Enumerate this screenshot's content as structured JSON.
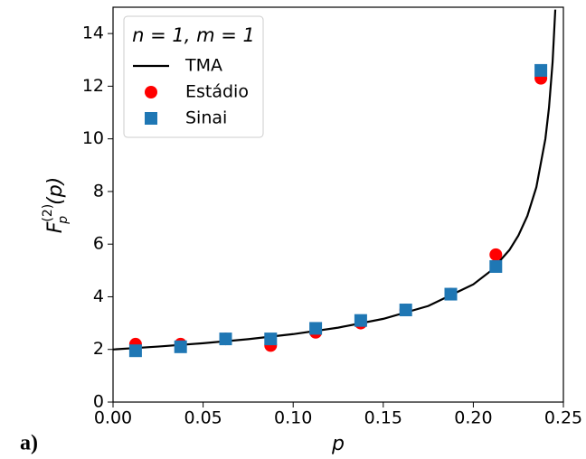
{
  "chart_data": {
    "type": "scatter",
    "ylabel": {
      "base": "F",
      "sup": "(2)",
      "sub": "p",
      "arg": "(p)"
    },
    "xlabel": "p",
    "annotation": "a)",
    "legend_title": "n = 1, m = 1",
    "legend": "upper left",
    "xlim": [
      0,
      0.25
    ],
    "ylim": [
      0,
      15
    ],
    "xticks": [
      {
        "value": 0,
        "label": "0.00"
      },
      {
        "value": 0.05,
        "label": "0.05"
      },
      {
        "value": 0.1,
        "label": "0.10"
      },
      {
        "value": 0.15,
        "label": "0.15"
      },
      {
        "value": 0.2,
        "label": "0.20"
      },
      {
        "value": 0.25,
        "label": "0.25"
      }
    ],
    "yticks": [
      0,
      2,
      4,
      6,
      8,
      10,
      12,
      14
    ],
    "series": [
      {
        "name": "TMA",
        "type": "line",
        "color": "#000000",
        "x": [
          0,
          0.025,
          0.05,
          0.075,
          0.1,
          0.125,
          0.15,
          0.175,
          0.2,
          0.21,
          0.22,
          0.225,
          0.23,
          0.235,
          0.24,
          0.242,
          0.244,
          0.2455
        ],
        "values": [
          2,
          2.108,
          2.236,
          2.39,
          2.582,
          2.828,
          3.162,
          3.651,
          4.472,
          5.0,
          5.774,
          6.325,
          7.071,
          8.165,
          10.0,
          11.18,
          12.91,
          14.91
        ]
      },
      {
        "name": "Estádio",
        "type": "scatter",
        "marker": "circle",
        "color": "#ff0000",
        "x": [
          0.0125,
          0.0375,
          0.0625,
          0.0875,
          0.1125,
          0.1375,
          0.1625,
          0.1875,
          0.2125,
          0.2375
        ],
        "values": [
          2.2,
          2.2,
          2.4,
          2.15,
          2.65,
          3.0,
          3.5,
          4.1,
          5.6,
          12.3
        ]
      },
      {
        "name": "Sinai",
        "type": "scatter",
        "marker": "square",
        "color": "#1f77b4",
        "x": [
          0.0125,
          0.0375,
          0.0625,
          0.0875,
          0.1125,
          0.1375,
          0.1625,
          0.1875,
          0.2125,
          0.2375
        ],
        "values": [
          1.95,
          2.1,
          2.4,
          2.4,
          2.8,
          3.1,
          3.5,
          4.1,
          5.15,
          12.6
        ]
      }
    ]
  }
}
